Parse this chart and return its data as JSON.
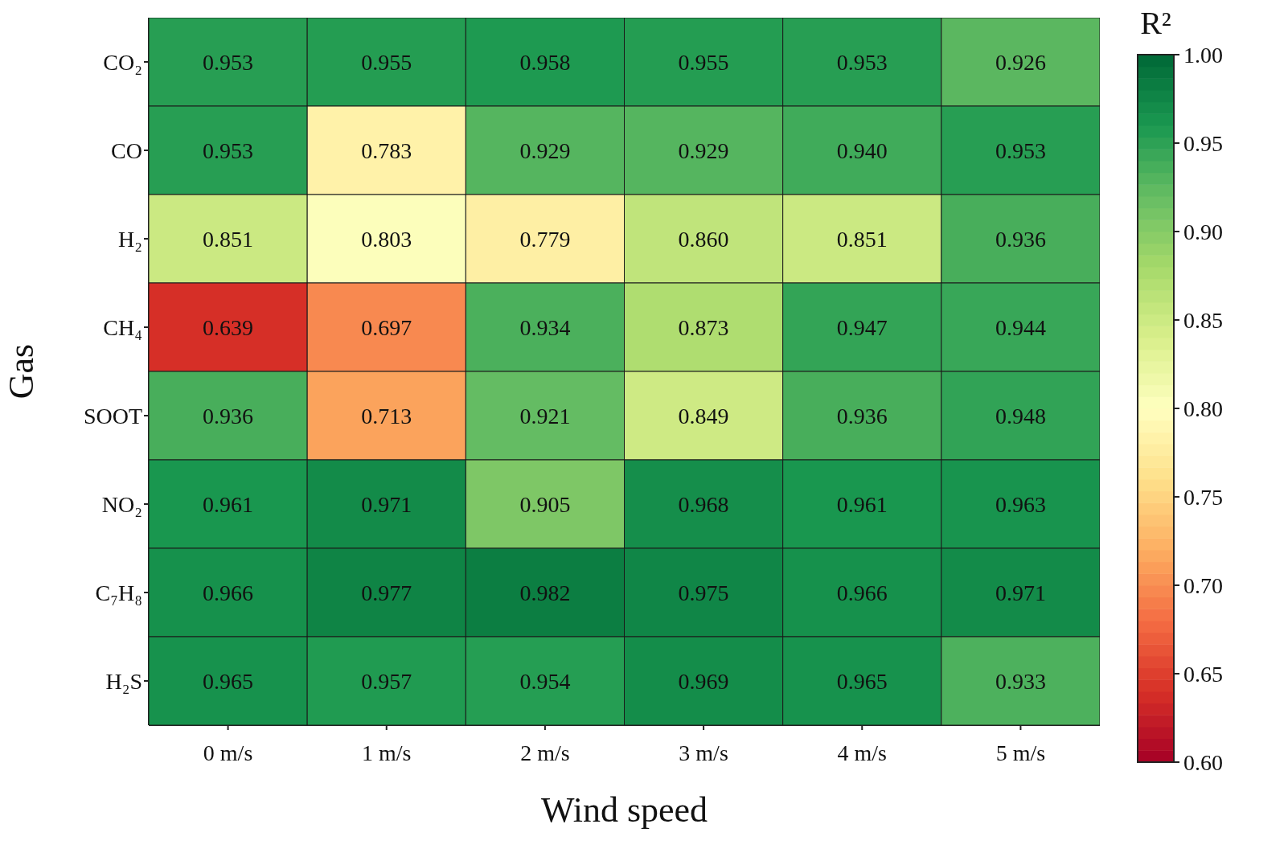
{
  "chart_data": {
    "type": "heatmap",
    "xlabel": "Wind speed",
    "ylabel": "Gas",
    "clabel": "R²",
    "categories": [
      "0 m/s",
      "1 m/s",
      "2 m/s",
      "3 m/s",
      "4 m/s",
      "5 m/s"
    ],
    "y_categories": [
      "CO₂",
      "CO",
      "H₂",
      "CH₄",
      "SOOT",
      "NO₂",
      "C₇H₈",
      "H₂S"
    ],
    "cells": [
      [
        0.953,
        0.955,
        0.958,
        0.955,
        0.953,
        0.926
      ],
      [
        0.953,
        0.783,
        0.929,
        0.929,
        0.94,
        0.953
      ],
      [
        0.851,
        0.803,
        0.779,
        0.86,
        0.851,
        0.936
      ],
      [
        0.639,
        0.697,
        0.934,
        0.873,
        0.947,
        0.944
      ],
      [
        0.936,
        0.713,
        0.921,
        0.849,
        0.936,
        0.948
      ],
      [
        0.961,
        0.971,
        0.905,
        0.968,
        0.961,
        0.963
      ],
      [
        0.966,
        0.977,
        0.982,
        0.975,
        0.966,
        0.971
      ],
      [
        0.965,
        0.957,
        0.954,
        0.969,
        0.965,
        0.933
      ]
    ],
    "cell_labels": [
      [
        "0.953",
        "0.955",
        "0.958",
        "0.955",
        "0.953",
        "0.926"
      ],
      [
        "0.953",
        "0.783",
        "0.929",
        "0.929",
        "0.940",
        "0.953"
      ],
      [
        "0.851",
        "0.803",
        "0.779",
        "0.860",
        "0.851",
        "0.936"
      ],
      [
        "0.639",
        "0.697",
        "0.934",
        "0.873",
        "0.947",
        "0.944"
      ],
      [
        "0.936",
        "0.713",
        "0.921",
        "0.849",
        "0.936",
        "0.948"
      ],
      [
        "0.961",
        "0.971",
        "0.905",
        "0.968",
        "0.961",
        "0.963"
      ],
      [
        "0.966",
        "0.977",
        "0.982",
        "0.975",
        "0.966",
        "0.971"
      ],
      [
        "0.965",
        "0.957",
        "0.954",
        "0.969",
        "0.965",
        "0.933"
      ]
    ],
    "clim": [
      0.6,
      1.0
    ],
    "cticks": [
      {
        "value": 0.6,
        "label": "0.60"
      },
      0.65,
      {
        "value": 0.7,
        "label": "0.70"
      },
      0.75,
      {
        "value": 0.8,
        "label": "0.80"
      },
      0.85,
      {
        "value": 0.9,
        "label": "0.90"
      },
      0.95,
      {
        "value": 1.0,
        "label": "1.00"
      }
    ]
  }
}
